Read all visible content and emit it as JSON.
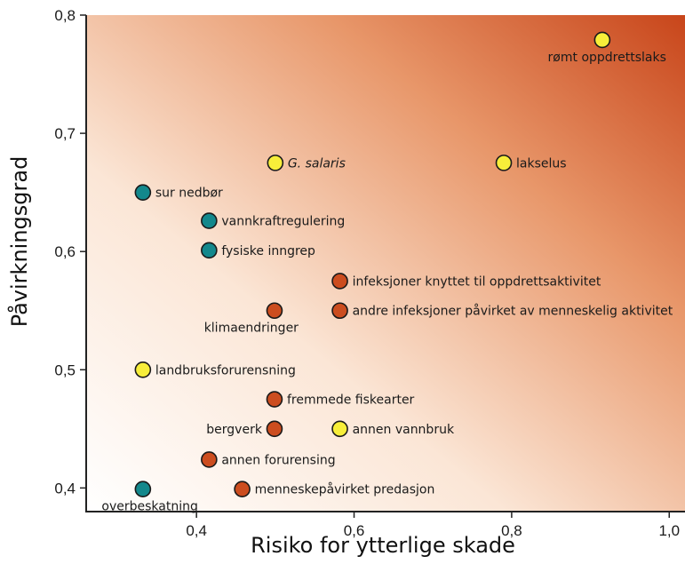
{
  "chart_data": {
    "type": "scatter",
    "xlabel": "Risiko for ytterlige skade",
    "ylabel": "Påvirkningsgrad",
    "xlim": [
      0.26,
      1.02
    ],
    "ylim": [
      0.38,
      0.8
    ],
    "x_ticks": [
      {
        "value": 0.4,
        "label": "0,4"
      },
      {
        "value": 0.6,
        "label": "0,6"
      },
      {
        "value": 0.8,
        "label": "0,8"
      },
      {
        "value": 1.0,
        "label": "1,0"
      }
    ],
    "y_ticks": [
      {
        "value": 0.4,
        "label": "0,4"
      },
      {
        "value": 0.5,
        "label": "0,5"
      },
      {
        "value": 0.6,
        "label": "0,6"
      },
      {
        "value": 0.7,
        "label": "0,7"
      },
      {
        "value": 0.8,
        "label": "0,8"
      }
    ],
    "grid": false,
    "background": "gradient white (bottom-left) to orange-red (top-right)",
    "colors": {
      "teal": "#13888c",
      "yellow": "#f7ee3a",
      "orange": "#cc4d1f",
      "gradient_start": "#ffffff",
      "gradient_end": "#c8451a"
    },
    "points": [
      {
        "label": "rømt oppdrettslaks",
        "x": 0.915,
        "y": 0.779,
        "color": "yellow",
        "label_pos": "below-left",
        "italic": false
      },
      {
        "label": "G. salaris",
        "x": 0.5,
        "y": 0.675,
        "color": "yellow",
        "label_pos": "right",
        "italic": true
      },
      {
        "label": "lakselus",
        "x": 0.79,
        "y": 0.675,
        "color": "yellow",
        "label_pos": "right",
        "italic": false
      },
      {
        "label": "sur nedbør",
        "x": 0.332,
        "y": 0.65,
        "color": "teal",
        "label_pos": "right",
        "italic": false
      },
      {
        "label": "vannkraftregulering",
        "x": 0.416,
        "y": 0.626,
        "color": "teal",
        "label_pos": "right",
        "italic": false
      },
      {
        "label": "fysiske inngrep",
        "x": 0.416,
        "y": 0.601,
        "color": "teal",
        "label_pos": "right",
        "italic": false
      },
      {
        "label": "infeksjoner knyttet til oppdrettsaktivitet",
        "x": 0.582,
        "y": 0.575,
        "color": "orange",
        "label_pos": "right",
        "italic": false
      },
      {
        "label": "klimaendringer",
        "x": 0.499,
        "y": 0.55,
        "color": "orange",
        "label_pos": "below-left",
        "italic": false
      },
      {
        "label": "andre infeksjoner påvirket av menneskelig aktivitet",
        "x": 0.582,
        "y": 0.55,
        "color": "orange",
        "label_pos": "right",
        "italic": false
      },
      {
        "label": "landbruksforurensning",
        "x": 0.332,
        "y": 0.5,
        "color": "yellow",
        "label_pos": "right",
        "italic": false
      },
      {
        "label": "fremmede fiskearter",
        "x": 0.499,
        "y": 0.475,
        "color": "orange",
        "label_pos": "right",
        "italic": false
      },
      {
        "label": "bergverk",
        "x": 0.499,
        "y": 0.45,
        "color": "orange",
        "label_pos": "left",
        "italic": false
      },
      {
        "label": "annen vannbruk",
        "x": 0.582,
        "y": 0.45,
        "color": "yellow",
        "label_pos": "right",
        "italic": false
      },
      {
        "label": "annen forurensing",
        "x": 0.416,
        "y": 0.424,
        "color": "orange",
        "label_pos": "right",
        "italic": false
      },
      {
        "label": "overbeskatning",
        "x": 0.332,
        "y": 0.399,
        "color": "teal",
        "label_pos": "below-left",
        "italic": false
      },
      {
        "label": "menneskepåvirket predasjon",
        "x": 0.458,
        "y": 0.399,
        "color": "orange",
        "label_pos": "right",
        "italic": false
      }
    ]
  }
}
